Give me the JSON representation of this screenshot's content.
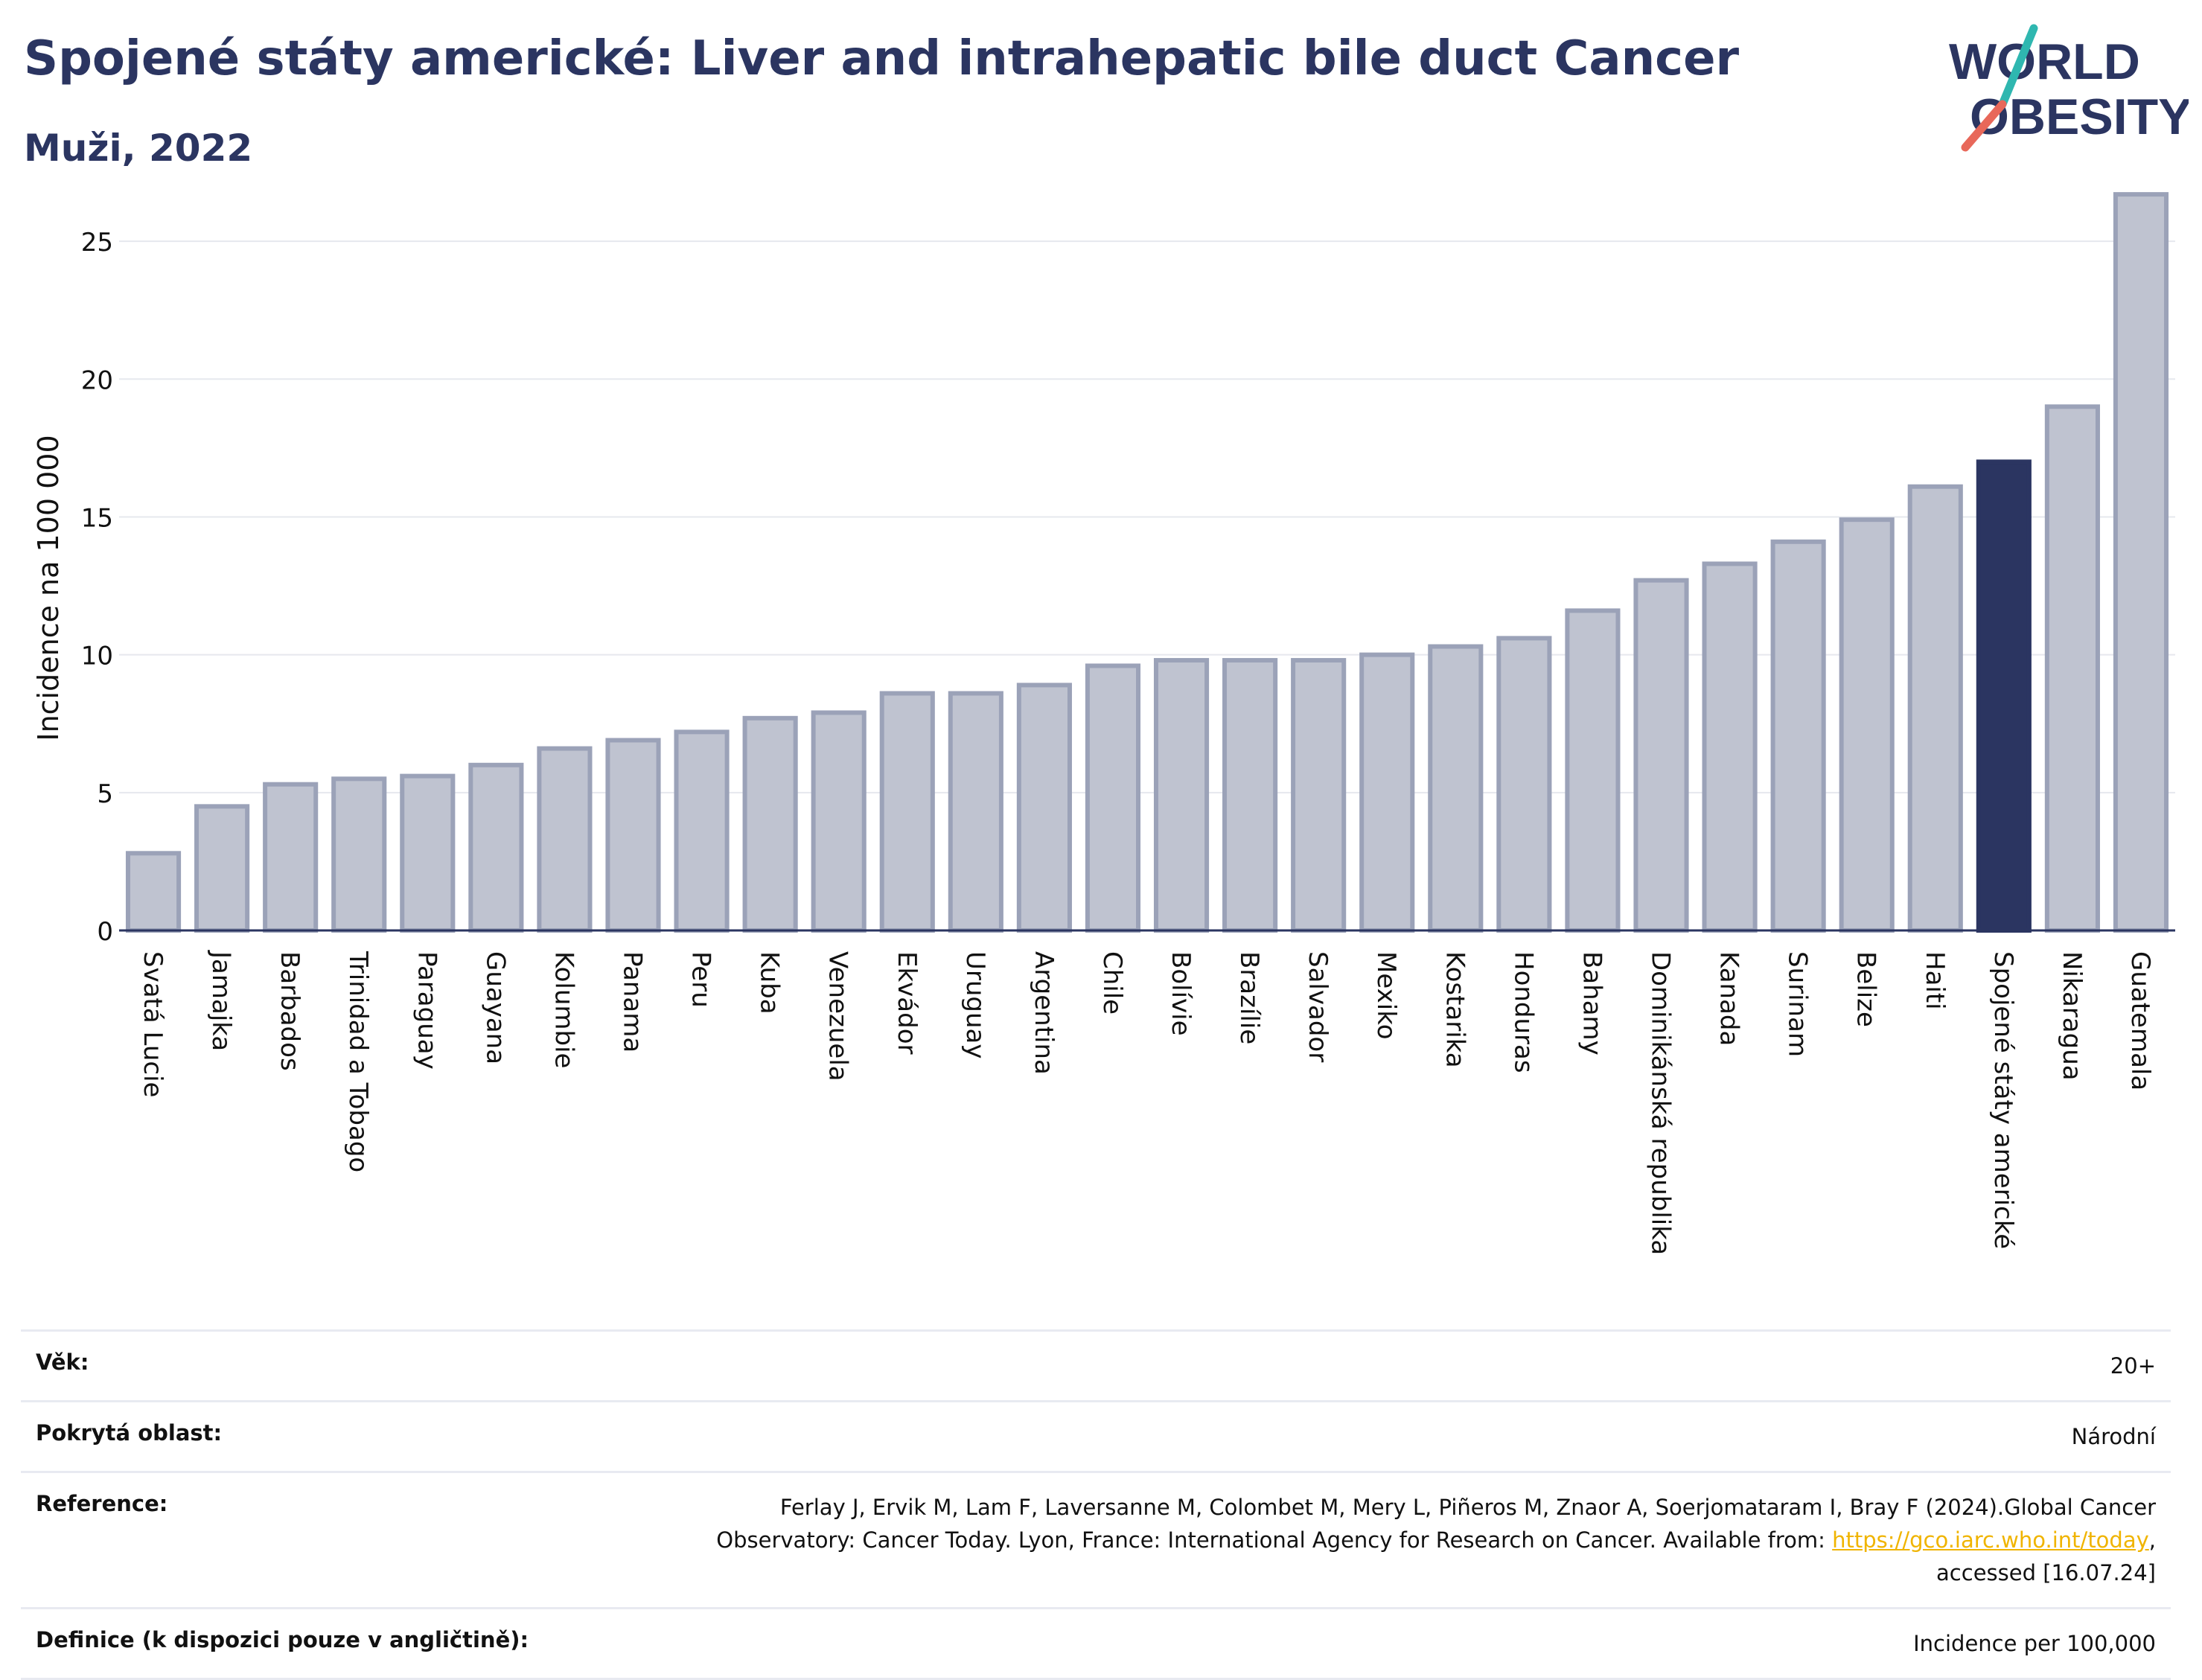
{
  "header": {
    "title": "Spojené státy americké: Liver and intrahepatic bile duct Cancer",
    "subtitle": "Muži, 2022"
  },
  "logo": {
    "line1": "WORLD",
    "line2": "OBESITY"
  },
  "colors": {
    "title": "#2b3561",
    "bar": "#bfc3d0",
    "bar_border": "#9ba2b8",
    "highlight": "#2b3561",
    "grid": "#e6e8ee",
    "link": "#f0b400"
  },
  "chart_data": {
    "type": "bar",
    "ylabel": "Incidence na 100 000",
    "ylim": [
      0,
      27
    ],
    "yticks": [
      0,
      5,
      10,
      15,
      20,
      25
    ],
    "grid": true,
    "highlight": "Spojené státy americké",
    "categories": [
      "Svatá Lucie",
      "Jamajka",
      "Barbados",
      "Trinidad a Tobago",
      "Paraguay",
      "Guayana",
      "Kolumbie",
      "Panama",
      "Peru",
      "Kuba",
      "Venezuela",
      "Ekvádor",
      "Uruguay",
      "Argentina",
      "Chile",
      "Bolívie",
      "Brazílie",
      "Salvador",
      "Mexiko",
      "Kostarika",
      "Honduras",
      "Bahamy",
      "Dominikánská republika",
      "Kanada",
      "Surinam",
      "Belize",
      "Haiti",
      "Spojené státy americké",
      "Nikaragua",
      "Guatemala"
    ],
    "values": [
      2.8,
      4.5,
      5.3,
      5.5,
      5.6,
      6.0,
      6.6,
      6.9,
      7.2,
      7.7,
      7.9,
      8.6,
      8.6,
      8.9,
      9.6,
      9.8,
      9.8,
      9.8,
      10.0,
      10.3,
      10.6,
      11.6,
      12.7,
      13.3,
      14.1,
      14.9,
      16.1,
      17.0,
      19.0,
      26.7
    ]
  },
  "meta": {
    "age_label": "Věk:",
    "age_value": "20+",
    "coverage_label": "Pokrytá oblast:",
    "coverage_value": "Národní",
    "reference_label": "Reference:",
    "reference_line1": "Ferlay J, Ervik M, Lam F, Laversanne M, Colombet M, Mery L, Piñeros M, Znaor A, Soerjomataram I, Bray F (2024).Global Cancer",
    "reference_line2_pre": "Observatory: Cancer Today. Lyon, France: International Agency for Research on Cancer. Available from: ",
    "reference_link": "https://gco.iarc.who.int/today",
    "reference_line2_post": ",",
    "reference_line3": "accessed [16.07.24]",
    "definition_label": "Definice (k dispozici pouze v angličtině):",
    "definition_value": "Incidence per 100,000"
  }
}
